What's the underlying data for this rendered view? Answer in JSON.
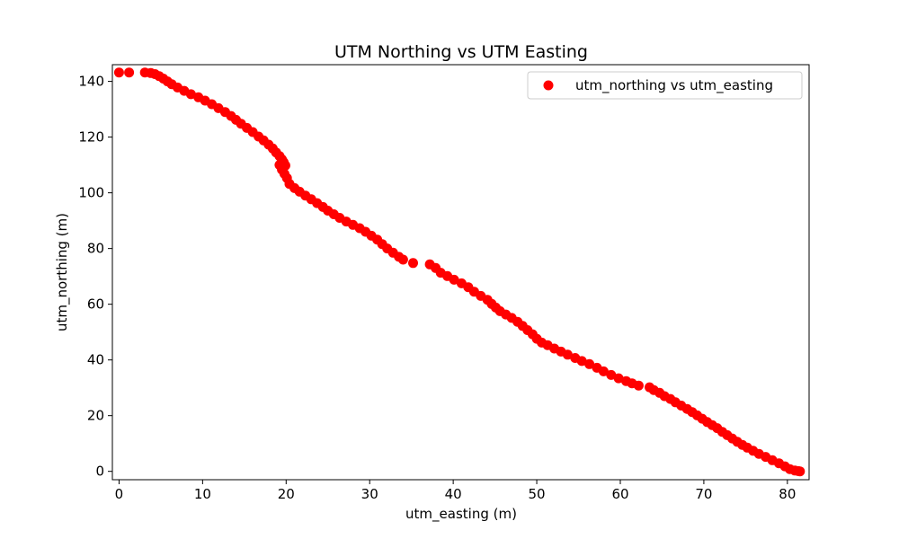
{
  "chart_data": {
    "type": "scatter",
    "title": "UTM Northing vs UTM Easting",
    "xlabel": "utm_easting (m)",
    "ylabel": "utm_northing (m)",
    "xlim": [
      -0.8,
      82.6
    ],
    "ylim": [
      -3,
      146
    ],
    "xticks": [
      0,
      10,
      20,
      30,
      40,
      50,
      60,
      70,
      80
    ],
    "yticks": [
      0,
      20,
      40,
      60,
      80,
      100,
      120,
      140
    ],
    "grid": false,
    "legend": {
      "position": "top-right",
      "label": "utm_northing vs utm_easting"
    },
    "series": [
      {
        "name": "utm_northing vs utm_easting",
        "color": "#ff0000",
        "x": [
          0.0,
          1.2,
          3.1,
          3.8,
          4.3,
          4.8,
          5.3,
          5.8,
          6.3,
          7.0,
          7.8,
          8.6,
          9.5,
          10.3,
          11.1,
          11.9,
          12.7,
          13.4,
          14.0,
          14.6,
          15.3,
          16.0,
          16.7,
          17.3,
          17.9,
          18.4,
          18.8,
          19.2,
          19.5,
          19.7,
          19.9,
          19.2,
          19.5,
          19.8,
          20.1,
          20.4,
          21.0,
          21.6,
          22.3,
          23.0,
          23.7,
          24.4,
          25.0,
          25.7,
          26.4,
          27.2,
          28.0,
          28.8,
          29.5,
          30.2,
          30.9,
          31.5,
          32.1,
          32.8,
          33.5,
          34.0,
          35.2,
          37.2,
          37.9,
          38.5,
          39.3,
          40.1,
          41.0,
          41.8,
          42.5,
          43.3,
          44.1,
          44.6,
          45.1,
          45.6,
          46.3,
          47.0,
          47.7,
          48.3,
          48.9,
          49.5,
          50.0,
          50.6,
          51.3,
          52.1,
          52.9,
          53.7,
          54.6,
          55.4,
          56.3,
          57.2,
          58.0,
          58.9,
          59.8,
          60.7,
          61.4,
          62.2,
          63.5,
          64.0,
          64.7,
          65.3,
          66.0,
          66.6,
          67.3,
          68.0,
          68.6,
          69.2,
          69.8,
          70.4,
          71.0,
          71.6,
          72.2,
          72.8,
          73.4,
          74.0,
          74.6,
          75.2,
          75.9,
          76.6,
          77.4,
          78.2,
          79.0,
          79.7,
          80.3,
          80.9,
          81.3,
          81.5
        ],
        "y": [
          143.2,
          143.2,
          143.2,
          143.0,
          142.6,
          141.9,
          141.0,
          140.0,
          139.0,
          137.8,
          136.6,
          135.4,
          134.3,
          133.1,
          131.8,
          130.4,
          129.0,
          127.6,
          126.2,
          124.8,
          123.3,
          121.8,
          120.2,
          118.8,
          117.3,
          115.9,
          114.5,
          113.2,
          112.0,
          111.0,
          109.8,
          110.0,
          108.3,
          106.8,
          105.3,
          103.2,
          101.7,
          100.4,
          99.0,
          97.7,
          96.3,
          94.9,
          93.6,
          92.3,
          91.0,
          89.7,
          88.5,
          87.3,
          86.0,
          84.6,
          83.2,
          81.6,
          80.0,
          78.5,
          77.0,
          76.0,
          74.8,
          74.3,
          73.0,
          71.3,
          70.1,
          68.8,
          67.5,
          66.1,
          64.5,
          63.0,
          61.6,
          60.1,
          58.8,
          57.5,
          56.3,
          55.1,
          53.7,
          52.2,
          50.7,
          49.2,
          47.6,
          46.2,
          45.3,
          44.1,
          43.0,
          41.9,
          40.7,
          39.6,
          38.5,
          37.2,
          35.9,
          34.6,
          33.4,
          32.4,
          31.6,
          30.8,
          30.2,
          29.2,
          28.2,
          27.0,
          26.0,
          24.8,
          23.6,
          22.4,
          21.3,
          20.1,
          18.9,
          17.7,
          16.6,
          15.5,
          14.2,
          13.0,
          11.8,
          10.6,
          9.5,
          8.5,
          7.4,
          6.3,
          5.2,
          4.0,
          2.9,
          1.8,
          0.8,
          0.3,
          0.1,
          0.0
        ]
      }
    ]
  }
}
